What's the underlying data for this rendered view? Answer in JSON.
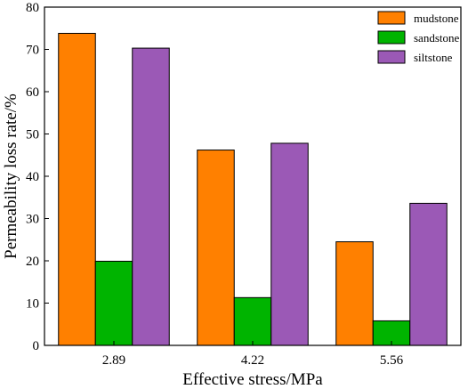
{
  "chart_data": {
    "type": "bar",
    "categories": [
      "2.89",
      "4.22",
      "5.56"
    ],
    "series": [
      {
        "name": "mudstone",
        "color": "#ff8000",
        "values": [
          73.8,
          46.2,
          24.5
        ]
      },
      {
        "name": "sandstone",
        "color": "#00b400",
        "values": [
          19.9,
          11.3,
          5.8
        ]
      },
      {
        "name": "siltstone",
        "color": "#9b59b6",
        "values": [
          70.3,
          47.8,
          33.6
        ]
      }
    ],
    "xlabel": "Effective stress/MPa",
    "ylabel": "Permeability loss rate/%",
    "ylim": [
      0,
      80
    ],
    "yticks": [
      "0",
      "10",
      "20",
      "30",
      "40",
      "50",
      "60",
      "70",
      "80"
    ],
    "legend_position": "top-right",
    "grid": false
  }
}
